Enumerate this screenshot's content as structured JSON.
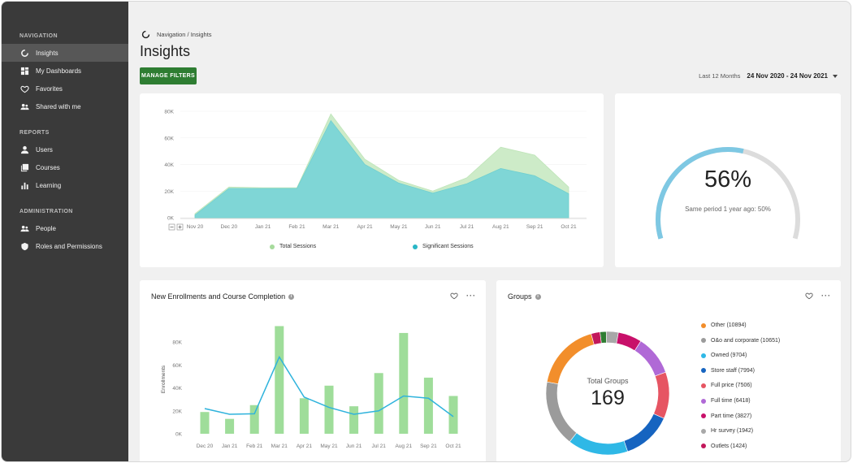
{
  "sidebar": {
    "sections": [
      {
        "label": "NAVIGATION",
        "items": [
          {
            "label": "Insights",
            "icon": "insights-icon",
            "active": true
          },
          {
            "label": "My Dashboards",
            "icon": "dashboard-icon"
          },
          {
            "label": "Favorites",
            "icon": "heart-icon"
          },
          {
            "label": "Shared with me",
            "icon": "people-icon"
          }
        ]
      },
      {
        "label": "REPORTS",
        "items": [
          {
            "label": "Users",
            "icon": "user-icon"
          },
          {
            "label": "Courses",
            "icon": "courses-icon"
          },
          {
            "label": "Learning",
            "icon": "bar-chart-icon"
          }
        ]
      },
      {
        "label": "ADMINISTRATION",
        "items": [
          {
            "label": "People",
            "icon": "people-icon"
          },
          {
            "label": "Roles and Permissions",
            "icon": "shield-icon"
          }
        ]
      }
    ]
  },
  "header": {
    "breadcrumb": "Navigation / Insights",
    "title": "Insights",
    "manage_filters": "MANAGE FILTERS",
    "range_label": "Last 12 Months",
    "range_dates": "24 Nov 2020 - 24 Nov 2021"
  },
  "gauge": {
    "percent": 56,
    "label": "56%",
    "subtext": "Same period 1 year ago: 50%",
    "color": "#7ec8e3",
    "track_color": "#dcdcdc"
  },
  "enrollments_card": {
    "title": "New Enrollments and Course Completion"
  },
  "groups_card": {
    "title": "Groups",
    "center_label": "Total Groups",
    "center_value": "169"
  },
  "colors": {
    "accent": "#2e7d32",
    "sidebar": "#3a3a3a"
  },
  "chart_data": [
    {
      "type": "area",
      "x": [
        "Nov 20",
        "Dec 20",
        "Jan 21",
        "Feb 21",
        "Mar 21",
        "Apr 21",
        "May 21",
        "Jun 21",
        "Jul 21",
        "Aug 21",
        "Sep 21",
        "Oct 21"
      ],
      "yticks": [
        "0K",
        "20K",
        "40K",
        "60K",
        "80K"
      ],
      "ylim": [
        0,
        80000
      ],
      "series": [
        {
          "name": "Total Sessions",
          "color": "#cdebc8",
          "dot": "#a6db9c",
          "values": [
            3000,
            23000,
            22500,
            22500,
            78000,
            44000,
            28000,
            20000,
            30000,
            53000,
            47000,
            23000
          ]
        },
        {
          "name": "Significant Sessions",
          "color": "#7fd6d6",
          "dot": "#29b6c6",
          "values": [
            2000,
            22000,
            22000,
            22000,
            73000,
            40000,
            26000,
            18500,
            25500,
            37000,
            31500,
            18000
          ]
        }
      ]
    },
    {
      "type": "bar",
      "x": [
        "Dec 20",
        "Jan 21",
        "Feb 21",
        "Mar 21",
        "Apr 21",
        "May 21",
        "Jun 21",
        "Jul 21",
        "Aug 21",
        "Sep 21",
        "Oct 21"
      ],
      "ylabel": "Enrollments",
      "yticks": [
        "0K",
        "20K",
        "40K",
        "60K",
        "80K"
      ],
      "ylim": [
        0,
        100000
      ],
      "series": [
        {
          "name": "Enrollments",
          "color": "#9fdd9a",
          "values": [
            19000,
            13000,
            25000,
            94000,
            31000,
            42000,
            24000,
            53000,
            88000,
            49000,
            33000
          ]
        },
        {
          "name": "Course Completion",
          "color": "#2fb3dc",
          "values": [
            22000,
            17000,
            17500,
            67000,
            32000,
            23000,
            17000,
            20000,
            33000,
            31000,
            15000
          ]
        }
      ]
    },
    {
      "type": "pie",
      "title": "Groups",
      "slices": [
        {
          "label": "Other (10894)",
          "value": 10894,
          "color": "#f28e2b"
        },
        {
          "label": "O&o and corporate (10651)",
          "value": 10651,
          "color": "#9b9b9b"
        },
        {
          "label": "Owned (9704)",
          "value": 9704,
          "color": "#2fb8e6"
        },
        {
          "label": "Store staff (7994)",
          "value": 7994,
          "color": "#1664c0"
        },
        {
          "label": "Full price (7506)",
          "value": 7506,
          "color": "#e65563"
        },
        {
          "label": "Full time (6418)",
          "value": 6418,
          "color": "#b069d6"
        },
        {
          "label": "Part time (3827)",
          "value": 3827,
          "color": "#c8106a"
        },
        {
          "label": "Hr survey (1942)",
          "value": 1942,
          "color": "#a8a8a8"
        },
        {
          "label": "Outlets (1424)",
          "value": 1424,
          "color": "#c2185b"
        },
        {
          "label": "",
          "value": 1000,
          "color": "#2e7d32"
        }
      ],
      "legend_count": 9
    }
  ]
}
